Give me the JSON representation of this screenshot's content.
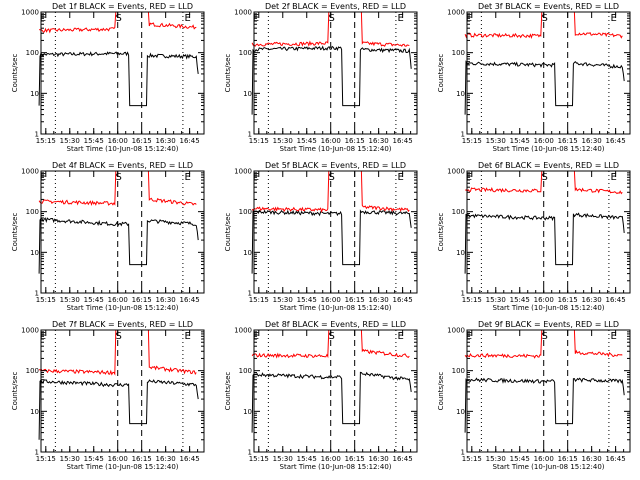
{
  "figure": {
    "background": "#ffffff",
    "axis_color": "#000000",
    "series_colors": {
      "events": "#000000",
      "lld": "#ff0000"
    }
  },
  "chart_data": [
    {
      "type": "line",
      "title": "Det 1f BLACK = Events, RED = LLD",
      "xlabel": "Start Time (10-Jun-08 15:12:40)",
      "ylabel": "Counts/sec",
      "yscale": "log",
      "ylim": [
        1,
        1000
      ],
      "x_ticks": [
        "15:15",
        "15:30",
        "15:45",
        "16:00",
        "16:15",
        "16:30",
        "16:45"
      ],
      "y_ticks": [
        "1",
        "10",
        "100",
        "1000"
      ],
      "markers": [
        "E",
        "S",
        "E"
      ],
      "series": [
        {
          "color": "#000000",
          "values": [
            [
              15.18,
              5
            ],
            [
              15.2,
              90
            ],
            [
              15.95,
              95
            ],
            [
              16.3,
              5
            ],
            [
              16.32,
              85
            ],
            [
              16.82,
              80
            ],
            [
              16.84,
              30
            ]
          ]
        },
        {
          "color": "#ff0000",
          "values": [
            [
              15.18,
              350
            ],
            [
              15.95,
              380
            ],
            [
              16.0,
              1000
            ],
            [
              16.3,
              1000
            ],
            [
              16.35,
              500
            ],
            [
              16.82,
              420
            ]
          ]
        }
      ]
    },
    {
      "type": "line",
      "title": "Det 2f BLACK = Events, RED = LLD",
      "xlabel": "Start Time (10-Jun-08 15:12:40)",
      "ylabel": "Counts/sec",
      "yscale": "log",
      "ylim": [
        1,
        1000
      ],
      "x_ticks": [
        "15:15",
        "15:30",
        "15:45",
        "16:00",
        "16:15",
        "16:30",
        "16:45"
      ],
      "y_ticks": [
        "1",
        "10",
        "100",
        "1000"
      ],
      "markers": [
        "E",
        "S",
        "E"
      ],
      "series": [
        {
          "color": "#000000",
          "values": [
            [
              15.18,
              3
            ],
            [
              15.2,
              120
            ],
            [
              15.95,
              130
            ],
            [
              16.3,
              5
            ],
            [
              16.32,
              120
            ],
            [
              16.82,
              110
            ],
            [
              16.84,
              40
            ]
          ]
        },
        {
          "color": "#ff0000",
          "values": [
            [
              15.18,
              160
            ],
            [
              15.95,
              170
            ],
            [
              16.0,
              1000
            ],
            [
              16.3,
              1000
            ],
            [
              16.35,
              170
            ],
            [
              16.82,
              150
            ]
          ]
        }
      ]
    },
    {
      "type": "line",
      "title": "Det 3f BLACK = Events, RED = LLD",
      "xlabel": "Start Time (10-Jun-08 15:12:40)",
      "ylabel": "Counts/sec",
      "yscale": "log",
      "ylim": [
        1,
        1000
      ],
      "x_ticks": [
        "15:15",
        "15:30",
        "15:45",
        "16:00",
        "16:15",
        "16:30",
        "16:45"
      ],
      "y_ticks": [
        "1",
        "10",
        "100",
        "1000"
      ],
      "markers": [
        "E",
        "S",
        "E"
      ],
      "series": [
        {
          "color": "#000000",
          "values": [
            [
              15.18,
              3
            ],
            [
              15.2,
              55
            ],
            [
              15.95,
              50
            ],
            [
              16.3,
              5
            ],
            [
              16.32,
              55
            ],
            [
              16.82,
              45
            ],
            [
              16.84,
              20
            ]
          ]
        },
        {
          "color": "#ff0000",
          "values": [
            [
              15.18,
              270
            ],
            [
              15.95,
              260
            ],
            [
              16.0,
              1000
            ],
            [
              16.3,
              1000
            ],
            [
              16.35,
              300
            ],
            [
              16.82,
              260
            ]
          ]
        }
      ]
    },
    {
      "type": "line",
      "title": "Det 4f BLACK = Events, RED = LLD",
      "xlabel": "Start Time (10-Jun-08 15:12:40)",
      "ylabel": "Counts/sec",
      "yscale": "log",
      "ylim": [
        1,
        1000
      ],
      "x_ticks": [
        "15:15",
        "15:30",
        "15:45",
        "16:00",
        "16:15",
        "16:30",
        "16:45"
      ],
      "y_ticks": [
        "1",
        "10",
        "100",
        "1000"
      ],
      "markers": [
        "E",
        "S",
        "E"
      ],
      "series": [
        {
          "color": "#000000",
          "values": [
            [
              15.18,
              3
            ],
            [
              15.2,
              65
            ],
            [
              15.95,
              50
            ],
            [
              16.3,
              5
            ],
            [
              16.32,
              60
            ],
            [
              16.82,
              50
            ],
            [
              16.84,
              20
            ]
          ]
        },
        {
          "color": "#ff0000",
          "values": [
            [
              15.18,
              180
            ],
            [
              15.95,
              160
            ],
            [
              16.0,
              1000
            ],
            [
              16.3,
              1000
            ],
            [
              16.35,
              200
            ],
            [
              16.82,
              150
            ]
          ]
        }
      ]
    },
    {
      "type": "line",
      "title": "Det 5f BLACK = Events, RED = LLD",
      "xlabel": "Start Time (10-Jun-08 15:12:40)",
      "ylabel": "Counts/sec",
      "yscale": "log",
      "ylim": [
        1,
        1000
      ],
      "x_ticks": [
        "15:15",
        "15:30",
        "15:45",
        "16:00",
        "16:15",
        "16:30",
        "16:45"
      ],
      "y_ticks": [
        "1",
        "10",
        "100",
        "1000"
      ],
      "markers": [
        "E",
        "S",
        "E"
      ],
      "series": [
        {
          "color": "#000000",
          "values": [
            [
              15.18,
              3
            ],
            [
              15.2,
              100
            ],
            [
              15.95,
              90
            ],
            [
              16.3,
              5
            ],
            [
              16.32,
              100
            ],
            [
              16.82,
              90
            ],
            [
              16.84,
              40
            ]
          ]
        },
        {
          "color": "#ff0000",
          "values": [
            [
              15.18,
              120
            ],
            [
              15.95,
              110
            ],
            [
              16.0,
              1000
            ],
            [
              16.3,
              1000
            ],
            [
              16.35,
              130
            ],
            [
              16.82,
              110
            ]
          ]
        }
      ]
    },
    {
      "type": "line",
      "title": "Det 6f BLACK = Events, RED = LLD",
      "xlabel": "Start Time (10-Jun-08 15:12:40)",
      "ylabel": "Counts/sec",
      "yscale": "log",
      "ylim": [
        1,
        1000
      ],
      "x_ticks": [
        "15:15",
        "15:30",
        "15:45",
        "16:00",
        "16:15",
        "16:30",
        "16:45"
      ],
      "y_ticks": [
        "1",
        "10",
        "100",
        "1000"
      ],
      "markers": [
        "E",
        "S",
        "E"
      ],
      "series": [
        {
          "color": "#000000",
          "values": [
            [
              15.18,
              3
            ],
            [
              15.2,
              80
            ],
            [
              15.95,
              70
            ],
            [
              16.3,
              5
            ],
            [
              16.32,
              85
            ],
            [
              16.82,
              70
            ],
            [
              16.84,
              30
            ]
          ]
        },
        {
          "color": "#ff0000",
          "values": [
            [
              15.18,
              350
            ],
            [
              15.95,
              330
            ],
            [
              16.0,
              1000
            ],
            [
              16.3,
              1000
            ],
            [
              16.35,
              350
            ],
            [
              16.82,
              300
            ]
          ]
        }
      ]
    },
    {
      "type": "line",
      "title": "Det 7f BLACK = Events, RED = LLD",
      "xlabel": "Start Time (10-Jun-08 15:12:40)",
      "ylabel": "Counts/sec",
      "yscale": "log",
      "ylim": [
        1,
        1000
      ],
      "x_ticks": [
        "15:15",
        "15:30",
        "15:45",
        "16:00",
        "16:15",
        "16:30",
        "16:45"
      ],
      "y_ticks": [
        "1",
        "10",
        "100",
        "1000"
      ],
      "markers": [
        "E",
        "S",
        "E"
      ],
      "series": [
        {
          "color": "#000000",
          "values": [
            [
              15.18,
              2
            ],
            [
              15.2,
              55
            ],
            [
              15.95,
              45
            ],
            [
              16.3,
              5
            ],
            [
              16.32,
              55
            ],
            [
              16.82,
              45
            ],
            [
              16.84,
              20
            ]
          ]
        },
        {
          "color": "#ff0000",
          "values": [
            [
              15.18,
              100
            ],
            [
              15.95,
              90
            ],
            [
              16.0,
              1000
            ],
            [
              16.3,
              1000
            ],
            [
              16.35,
              120
            ],
            [
              16.82,
              90
            ]
          ]
        }
      ]
    },
    {
      "type": "line",
      "title": "Det 8f BLACK = Events, RED = LLD",
      "xlabel": "Start Time (10-Jun-08 15:12:40)",
      "ylabel": "Counts/sec",
      "yscale": "log",
      "ylim": [
        1,
        1000
      ],
      "x_ticks": [
        "15:15",
        "15:30",
        "15:45",
        "16:00",
        "16:15",
        "16:30",
        "16:45"
      ],
      "y_ticks": [
        "1",
        "10",
        "100",
        "1000"
      ],
      "markers": [
        "E",
        "S",
        "E"
      ],
      "series": [
        {
          "color": "#000000",
          "values": [
            [
              15.18,
              3
            ],
            [
              15.2,
              80
            ],
            [
              15.95,
              70
            ],
            [
              16.3,
              5
            ],
            [
              16.32,
              85
            ],
            [
              16.82,
              60
            ],
            [
              16.84,
              30
            ]
          ]
        },
        {
          "color": "#ff0000",
          "values": [
            [
              15.18,
              240
            ],
            [
              15.95,
              230
            ],
            [
              16.0,
              1000
            ],
            [
              16.3,
              1000
            ],
            [
              16.35,
              300
            ],
            [
              16.82,
              230
            ]
          ]
        }
      ]
    },
    {
      "type": "line",
      "title": "Det 9f BLACK = Events, RED = LLD",
      "xlabel": "Start Time (10-Jun-08 15:12:40)",
      "ylabel": "Counts/sec",
      "yscale": "log",
      "ylim": [
        1,
        1000
      ],
      "x_ticks": [
        "15:15",
        "15:30",
        "15:45",
        "16:00",
        "16:15",
        "16:30",
        "16:45"
      ],
      "y_ticks": [
        "1",
        "10",
        "100",
        "1000"
      ],
      "markers": [
        "E",
        "S",
        "E"
      ],
      "series": [
        {
          "color": "#000000",
          "values": [
            [
              15.18,
              3
            ],
            [
              15.2,
              60
            ],
            [
              15.95,
              55
            ],
            [
              16.3,
              5
            ],
            [
              16.32,
              60
            ],
            [
              16.82,
              55
            ],
            [
              16.84,
              25
            ]
          ]
        },
        {
          "color": "#ff0000",
          "values": [
            [
              15.18,
              240
            ],
            [
              15.95,
              230
            ],
            [
              16.0,
              1000
            ],
            [
              16.3,
              1000
            ],
            [
              16.35,
              280
            ],
            [
              16.82,
              240
            ]
          ]
        }
      ]
    }
  ]
}
